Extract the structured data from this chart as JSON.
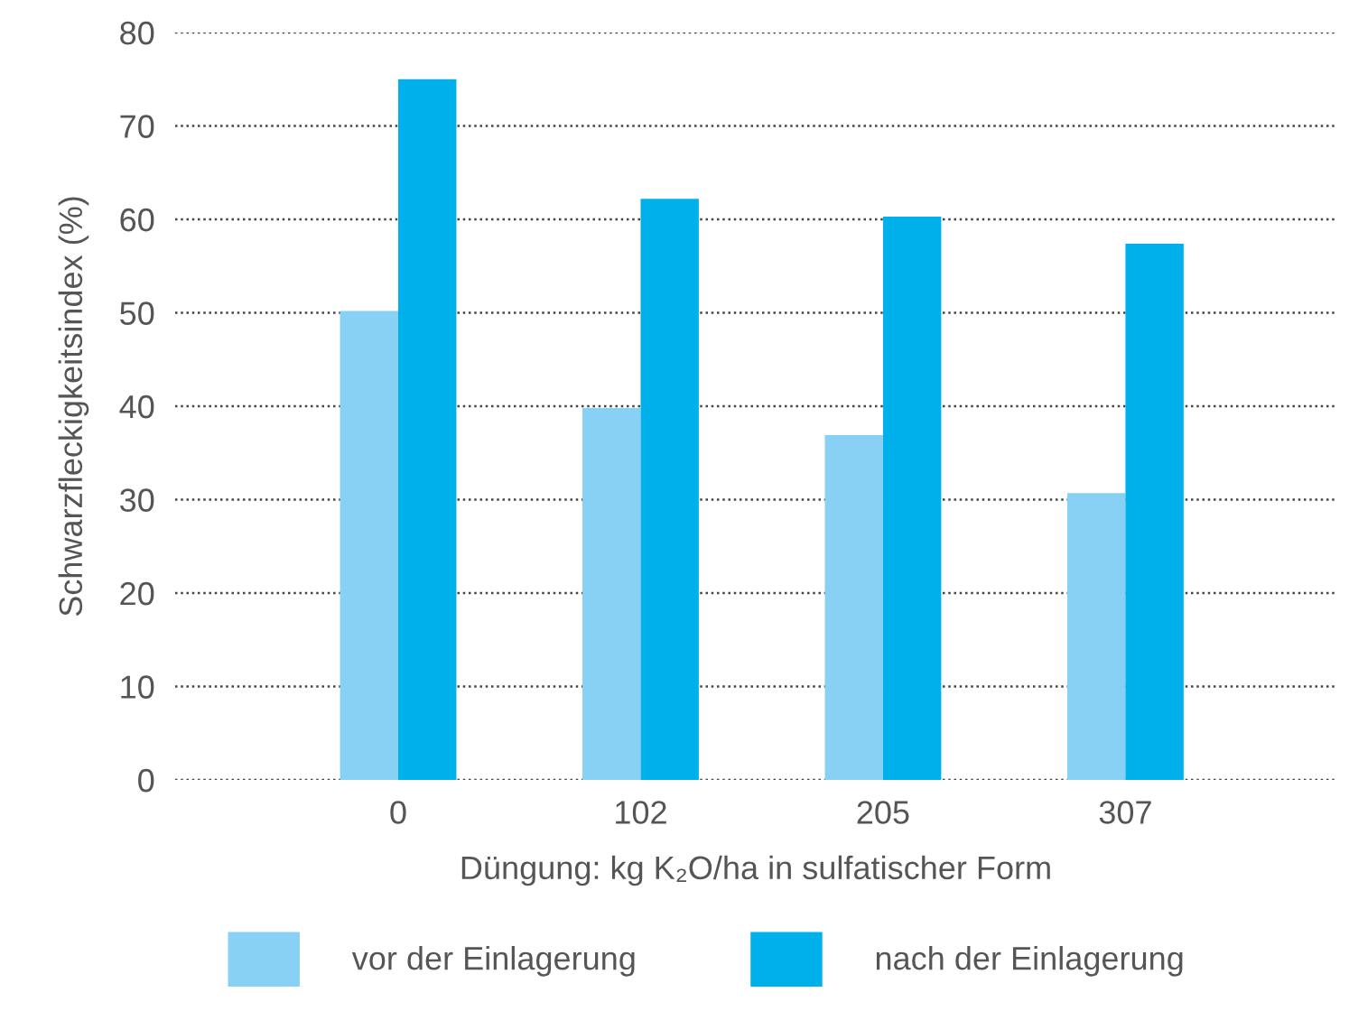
{
  "chart_data": {
    "type": "bar",
    "xlabel": "Düngung: kg K₂O/ha in sulfatischer Form",
    "ylabel": "Schwarzfleckigkeitsindex (%)",
    "categories": [
      "0",
      "102",
      "205",
      "307"
    ],
    "series": [
      {
        "name": "vor der Einlagerung",
        "color": "#89d1f4",
        "values": [
          50.2,
          39.8,
          36.9,
          30.7
        ]
      },
      {
        "name": "nach der Einlagerung",
        "color": "#00b0ea",
        "values": [
          75.0,
          62.2,
          60.3,
          57.4
        ]
      }
    ],
    "ylim": [
      0,
      80
    ],
    "yticks": [
      0,
      10,
      20,
      30,
      40,
      50,
      60,
      70,
      80
    ],
    "grid": "y",
    "legend": "bottom"
  }
}
